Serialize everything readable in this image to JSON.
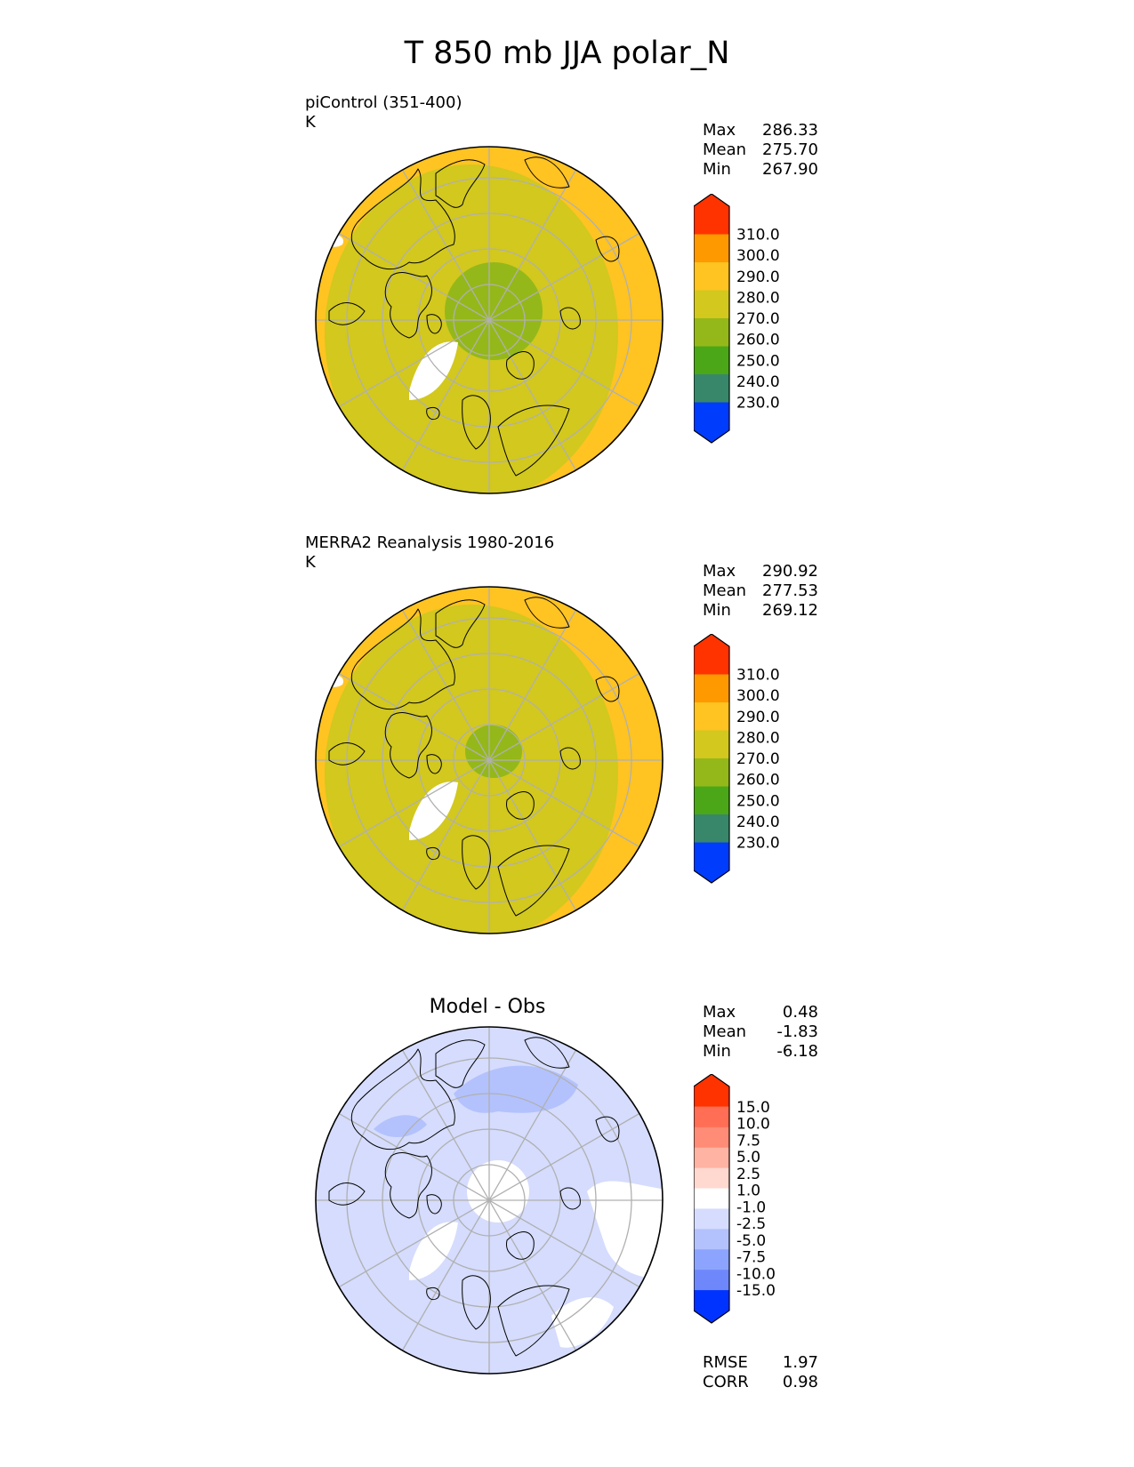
{
  "figure": {
    "title": "T 850 mb JJA polar_N"
  },
  "colors": {
    "land_outline": "#000000",
    "grid": "#b0b0b0",
    "missing": "#ffffff"
  },
  "icons": {
    "map": "north-polar-stereographic-map",
    "colorbar_ends": "hexagonal-arrow-ends"
  },
  "panels": [
    {
      "id": "model",
      "label": "piControl (351-400)",
      "units": "K",
      "stats": [
        {
          "name": "Max",
          "value": "286.33"
        },
        {
          "name": "Mean",
          "value": "275.70"
        },
        {
          "name": "Min",
          "value": "267.90"
        }
      ],
      "polar_region_value_k": 265,
      "outer_region_value_k": 285,
      "mid_region_value_k": 275
    },
    {
      "id": "obs",
      "label": "MERRA2 Reanalysis 1980-2016",
      "units": "K",
      "stats": [
        {
          "name": "Max",
          "value": "290.92"
        },
        {
          "name": "Mean",
          "value": "277.53"
        },
        {
          "name": "Min",
          "value": "269.12"
        }
      ],
      "polar_region_value_k": 265,
      "outer_region_value_k": 285,
      "mid_region_value_k": 275
    },
    {
      "id": "diff",
      "label": "Model - Obs",
      "stats": [
        {
          "name": "Max",
          "value": "0.48"
        },
        {
          "name": "Mean",
          "value": "-1.83"
        },
        {
          "name": "Min",
          "value": "-6.18"
        }
      ],
      "metrics": [
        {
          "name": "RMSE",
          "value": "1.97"
        },
        {
          "name": "CORR",
          "value": "0.98"
        }
      ]
    }
  ],
  "colorbars": {
    "absolute": {
      "ticks": [
        "310.0",
        "300.0",
        "290.0",
        "280.0",
        "270.0",
        "260.0",
        "250.0",
        "240.0",
        "230.0"
      ],
      "colors": [
        "#ff3300",
        "#ff6600",
        "#ff9900",
        "#ffc322",
        "#d2c81e",
        "#94b81a",
        "#4ba718",
        "#38876a",
        "#0068a8",
        "#003cfb"
      ]
    },
    "difference": {
      "ticks": [
        "15.0",
        "10.0",
        "7.5",
        "5.0",
        "2.5",
        "1.0",
        "-1.0",
        "-2.5",
        "-5.0",
        "-7.5",
        "-10.0",
        "-15.0"
      ],
      "colors": [
        "#ff3300",
        "#ff5133",
        "#ff6e55",
        "#ff8c77",
        "#ffb3a3",
        "#ffd8d0",
        "#ffffff",
        "#d5dcfd",
        "#b3c2fd",
        "#8ca4fd",
        "#6e88fc",
        "#4569fc",
        "#0033ff"
      ]
    }
  }
}
